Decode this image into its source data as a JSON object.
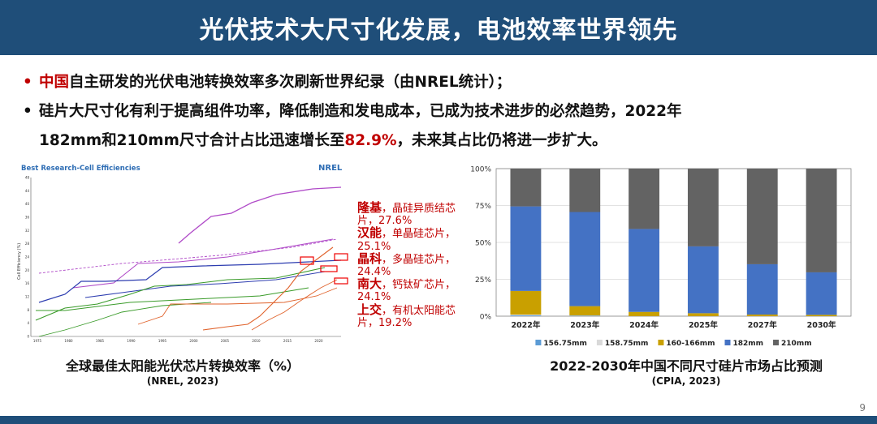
{
  "header": {
    "title": "光伏技术大尺寸化发展，电池效率世界领先"
  },
  "bullets": [
    {
      "dot": "•",
      "highlight": "中国",
      "text": "自主研发的光伏电池转换效率多次刷新世界纪录（由NREL统计）；"
    },
    {
      "dot": "•",
      "line1": "硅片大尺寸化有利于提高组件功率，降低制造和发电成本，已成为技术进步的必然趋势，2022年",
      "line2_pre": "182mm和210mm尺寸合计占比迅速增长至",
      "highlight": "82.9%",
      "line2_post": "，未来其占比仍将进一步扩大。"
    }
  ],
  "nrel_image": {
    "title": "Best Research-Cell Efficiencies",
    "logo": "NREL",
    "ylabel": "Cell Efficiency (%)",
    "yticks": [
      "0",
      "4",
      "8",
      "12",
      "16",
      "20",
      "24",
      "28",
      "32",
      "36",
      "40",
      "44",
      "48"
    ],
    "xticks": [
      "1975",
      "1980",
      "1985",
      "1990",
      "1995",
      "2000",
      "2005",
      "2010",
      "2015",
      "2020"
    ]
  },
  "annotations": [
    {
      "company": "隆基",
      "desc": "，晶硅异质结芯片，27.6%"
    },
    {
      "company": "汉能",
      "desc": "，单晶硅芯片，25.1%"
    },
    {
      "company": "晶科",
      "desc": "，多晶硅芯片，24.4%"
    },
    {
      "company": "南大",
      "desc": "，钙钛矿芯片，24.1%"
    },
    {
      "company": "上交",
      "desc": "，有机太阳能芯片，19.2%"
    }
  ],
  "left_caption": {
    "title": "全球最佳太阳能光伏芯片转换效率（%）",
    "source": "(NREL, 2023)"
  },
  "right_caption": {
    "title": "2022-2030年中国不同尺寸硅片市场占比预测",
    "source": "(CPIA, 2023)"
  },
  "chart_data": {
    "type": "bar",
    "stacked": true,
    "categories": [
      "2022年",
      "2023年",
      "2024年",
      "2025年",
      "2027年",
      "2030年"
    ],
    "series": [
      {
        "name": "156.75mm",
        "color": "#5b9bd5",
        "values": [
          0.5,
          0.3,
          0,
          0,
          0,
          0
        ]
      },
      {
        "name": "158.75mm",
        "color": "#d9d9d9",
        "values": [
          0.6,
          0.2,
          0,
          0,
          0,
          0
        ]
      },
      {
        "name": "160-166mm",
        "color": "#c9a000",
        "values": [
          16.0,
          6.3,
          2.9,
          2.0,
          1.1,
          0.9
        ]
      },
      {
        "name": "182mm",
        "color": "#4472c4",
        "values": [
          57.3,
          63.8,
          56.2,
          45.3,
          34.1,
          28.8
        ]
      },
      {
        "name": "210mm",
        "color": "#636363",
        "values": [
          25.6,
          29.4,
          40.9,
          52.7,
          64.8,
          70.3
        ]
      }
    ],
    "yticks": [
      "0%",
      "25%",
      "50%",
      "75%",
      "100%"
    ],
    "ylim": [
      0,
      100
    ],
    "grid": true,
    "legend": "bottom"
  },
  "page_number": "9",
  "colors": {
    "header": "#1f4e79",
    "accent_red": "#c00000"
  }
}
